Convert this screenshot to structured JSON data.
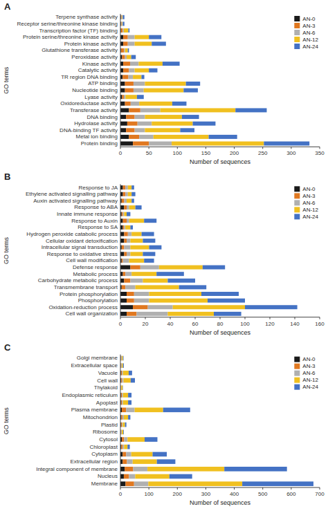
{
  "chart_data": [
    {
      "type": "bar",
      "title": "A",
      "orientation": "horizontal",
      "stacked": true,
      "grid": false,
      "legend": "upper right",
      "x_label": "Number of sequences",
      "y_label": "GO terms",
      "categories": [
        "Terpene synthase activity",
        "Receptor serine/threonine kinase binding",
        "Transcription factor (TF) binding",
        "Protein serine/threonine kinase activity",
        "Protein kinase activity",
        "Glutathione transferase activity",
        "Peroxidase activity",
        "Kinase activity",
        "Catalytic activity",
        "TR region DNA binding",
        "ATP binding",
        "Nucleotide binding",
        "Lyase activity",
        "Oxidoreductase activity",
        "Transferase activity",
        "DNA binding",
        "Hydrolase activity",
        "DNA-binding TF activity",
        "Metal ion binding",
        "Protein binding"
      ],
      "series": [
        {
          "name": "AN-0",
          "color": "#1a1a1a",
          "values": [
            1,
            1,
            1,
            5,
            5,
            1,
            3,
            5,
            5,
            4,
            8,
            8,
            3,
            8,
            15,
            10,
            12,
            10,
            15,
            22
          ]
        },
        {
          "name": "AN-3",
          "color": "#e07820",
          "values": [
            1,
            1,
            3,
            8,
            8,
            5,
            5,
            12,
            10,
            10,
            15,
            15,
            3,
            10,
            20,
            15,
            18,
            15,
            18,
            28
          ]
        },
        {
          "name": "AN-6",
          "color": "#b0b0b0",
          "values": [
            1,
            1,
            2,
            12,
            12,
            2,
            3,
            15,
            10,
            8,
            20,
            18,
            3,
            15,
            35,
            18,
            25,
            18,
            25,
            40
          ]
        },
        {
          "name": "AN-12",
          "color": "#f0c020",
          "values": [
            1,
            1,
            8,
            25,
            30,
            5,
            8,
            42,
            25,
            15,
            72,
            70,
            20,
            58,
            132,
            65,
            72,
            62,
            97,
            162
          ]
        },
        {
          "name": "AN-24",
          "color": "#4472c4",
          "values": [
            3,
            3,
            2,
            22,
            25,
            2,
            8,
            30,
            15,
            5,
            25,
            25,
            12,
            25,
            55,
            30,
            40,
            25,
            50,
            80
          ]
        }
      ],
      "xlim": [
        0,
        350
      ],
      "xticks": [
        0,
        50,
        100,
        150,
        200,
        250,
        300,
        350
      ]
    },
    {
      "type": "bar",
      "title": "B",
      "orientation": "horizontal",
      "stacked": true,
      "grid": false,
      "legend": "upper right",
      "x_label": "Number of sequences",
      "y_label": "GO terms",
      "categories": [
        "Response to JA",
        "Ethylene activated signalling pathway",
        "Auxin activated signalling pathway",
        "Response to ABA",
        "Innate immune response",
        "Response to Auxin",
        "Response to SA",
        "Hydrogen peroxide catabolic process",
        "Cellular oxidant detoxification",
        "Intracellular signal transduction",
        "Response to oxidative stress",
        "Cell wall modification",
        "Defense response",
        "Metabolic process",
        "Carbohydrate metabolic process",
        "Transmembrane transport",
        "Protein phosphorylation",
        "Phosphorylation",
        "Oxidation-reduction process",
        "Cell wall organization"
      ],
      "series": [
        {
          "name": "AN-0",
          "color": "#1a1a1a",
          "values": [
            2,
            2,
            1,
            3,
            1,
            2,
            2,
            3,
            3,
            1,
            3,
            1,
            8,
            2,
            3,
            1,
            5,
            5,
            10,
            5
          ]
        },
        {
          "name": "AN-3",
          "color": "#e07820",
          "values": [
            2,
            2,
            2,
            2,
            1,
            3,
            1,
            3,
            2,
            2,
            2,
            1,
            8,
            2,
            5,
            3,
            6,
            6,
            12,
            8
          ]
        },
        {
          "name": "AN-6",
          "color": "#b0b0b0",
          "values": [
            2,
            2,
            2,
            2,
            1,
            2,
            1,
            3,
            3,
            5,
            3,
            5,
            15,
            5,
            10,
            8,
            12,
            12,
            20,
            25
          ]
        },
        {
          "name": "AN-12",
          "color": "#f0c020",
          "values": [
            3,
            3,
            4,
            5,
            2,
            12,
            4,
            8,
            10,
            15,
            10,
            12,
            35,
            20,
            20,
            35,
            42,
            47,
            58,
            37
          ]
        },
        {
          "name": "AN-24",
          "color": "#4472c4",
          "values": [
            2,
            3,
            2,
            5,
            3,
            10,
            2,
            10,
            10,
            10,
            10,
            8,
            18,
            22,
            22,
            22,
            30,
            30,
            42,
            22
          ]
        }
      ],
      "xlim": [
        0,
        160
      ],
      "xticks": [
        0,
        20,
        40,
        60,
        80,
        100,
        120,
        140,
        160
      ]
    },
    {
      "type": "bar",
      "title": "C",
      "orientation": "horizontal",
      "stacked": true,
      "grid": false,
      "legend": "upper right",
      "x_label": "Number of sequences",
      "y_label": "GO terms",
      "categories": [
        "Golgi membrane",
        "Extracellular space",
        "Vacuole",
        "Cell wall",
        "Thylakoid",
        "Endoplasmic reticulum",
        "Apoplast",
        "Plasma membrane",
        "Mitochondrion",
        "Plastid",
        "Ribosome",
        "Cytosol",
        "Chloroplast",
        "Cytoplasm",
        "Extracellular region",
        "Integral component of membrane",
        "Nucleus",
        "Membrane"
      ],
      "series": [
        {
          "name": "AN-0",
          "color": "#1a1a1a",
          "values": [
            1,
            1,
            2,
            3,
            1,
            2,
            2,
            5,
            3,
            2,
            1,
            5,
            3,
            8,
            8,
            15,
            12,
            18
          ]
        },
        {
          "name": "AN-3",
          "color": "#e07820",
          "values": [
            2,
            2,
            3,
            3,
            1,
            3,
            3,
            15,
            4,
            3,
            2,
            8,
            5,
            12,
            15,
            30,
            18,
            30
          ]
        },
        {
          "name": "AN-6",
          "color": "#b0b0b0",
          "values": [
            2,
            2,
            4,
            5,
            1,
            4,
            4,
            30,
            5,
            3,
            2,
            12,
            5,
            18,
            20,
            50,
            22,
            50
          ]
        },
        {
          "name": "AN-12",
          "color": "#f0c020",
          "values": [
            4,
            4,
            20,
            25,
            5,
            18,
            18,
            100,
            15,
            8,
            5,
            60,
            12,
            75,
            85,
            270,
            120,
            330
          ]
        },
        {
          "name": "AN-24",
          "color": "#4472c4",
          "values": [
            2,
            3,
            12,
            15,
            1,
            12,
            12,
            95,
            8,
            5,
            2,
            45,
            8,
            50,
            65,
            220,
            80,
            250
          ]
        }
      ],
      "xlim": [
        0,
        700
      ],
      "xticks": [
        0,
        100,
        200,
        300,
        400,
        500,
        600,
        700
      ]
    }
  ]
}
